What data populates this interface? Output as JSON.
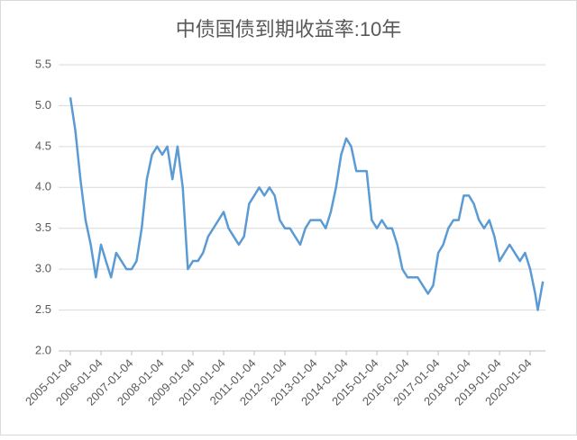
{
  "chart_data": {
    "type": "line",
    "title": "中债国债到期收益率:10年",
    "x": [
      "2005-01-04",
      "2005-03-04",
      "2005-05-04",
      "2005-07-04",
      "2005-09-04",
      "2005-11-04",
      "2006-01-04",
      "2006-03-04",
      "2006-05-04",
      "2006-07-04",
      "2006-09-04",
      "2006-11-04",
      "2007-01-04",
      "2007-03-04",
      "2007-05-04",
      "2007-07-04",
      "2007-09-04",
      "2007-11-04",
      "2008-01-04",
      "2008-03-04",
      "2008-05-04",
      "2008-07-04",
      "2008-09-04",
      "2008-11-04",
      "2009-01-04",
      "2009-03-04",
      "2009-05-04",
      "2009-07-04",
      "2009-09-04",
      "2009-11-04",
      "2010-01-04",
      "2010-03-04",
      "2010-05-04",
      "2010-07-04",
      "2010-09-04",
      "2010-11-04",
      "2011-01-04",
      "2011-03-04",
      "2011-05-04",
      "2011-07-04",
      "2011-09-04",
      "2011-11-04",
      "2012-01-04",
      "2012-03-04",
      "2012-05-04",
      "2012-07-04",
      "2012-09-04",
      "2012-11-04",
      "2013-01-04",
      "2013-03-04",
      "2013-05-04",
      "2013-07-04",
      "2013-09-04",
      "2013-11-04",
      "2014-01-04",
      "2014-03-04",
      "2014-05-04",
      "2014-07-04",
      "2014-09-04",
      "2014-11-04",
      "2015-01-04",
      "2015-03-04",
      "2015-05-04",
      "2015-07-04",
      "2015-09-04",
      "2015-11-04",
      "2016-01-04",
      "2016-03-04",
      "2016-05-04",
      "2016-07-04",
      "2016-09-04",
      "2016-11-04",
      "2017-01-04",
      "2017-03-04",
      "2017-05-04",
      "2017-07-04",
      "2017-09-04",
      "2017-11-04",
      "2018-01-04",
      "2018-03-04",
      "2018-05-04",
      "2018-07-04",
      "2018-09-04",
      "2018-11-04",
      "2019-01-04",
      "2019-03-04",
      "2019-05-04",
      "2019-07-04",
      "2019-09-04",
      "2019-11-04",
      "2020-01-04",
      "2020-03-04",
      "2020-04-04",
      "2020-06-04"
    ],
    "series": [
      {
        "color": "#5b9bd5",
        "values": [
          5.1,
          4.7,
          4.1,
          3.6,
          3.3,
          2.9,
          3.3,
          3.1,
          2.9,
          3.2,
          3.1,
          3.0,
          3.0,
          3.1,
          3.5,
          4.1,
          4.4,
          4.5,
          4.4,
          4.5,
          4.1,
          4.5,
          4.0,
          3.0,
          3.1,
          3.1,
          3.2,
          3.4,
          3.5,
          3.6,
          3.7,
          3.5,
          3.4,
          3.3,
          3.4,
          3.8,
          3.9,
          4.0,
          3.9,
          4.0,
          3.9,
          3.6,
          3.5,
          3.5,
          3.4,
          3.3,
          3.5,
          3.6,
          3.6,
          3.6,
          3.5,
          3.7,
          4.0,
          4.4,
          4.6,
          4.5,
          4.2,
          4.2,
          4.2,
          3.6,
          3.5,
          3.6,
          3.5,
          3.5,
          3.3,
          3.0,
          2.9,
          2.9,
          2.9,
          2.8,
          2.7,
          2.8,
          3.2,
          3.3,
          3.5,
          3.6,
          3.6,
          3.9,
          3.9,
          3.8,
          3.6,
          3.5,
          3.6,
          3.4,
          3.1,
          3.2,
          3.3,
          3.2,
          3.1,
          3.2,
          3.0,
          2.7,
          2.5,
          2.85
        ]
      }
    ],
    "xlim": [
      "2004-08-17",
      "2020-07-04"
    ],
    "xticks": [
      "2005-01-04",
      "2006-01-04",
      "2007-01-04",
      "2008-01-04",
      "2009-01-04",
      "2010-01-04",
      "2011-01-04",
      "2012-01-04",
      "2013-01-04",
      "2014-01-04",
      "2015-01-04",
      "2016-01-04",
      "2017-01-04",
      "2018-01-04",
      "2019-01-04",
      "2020-01-04"
    ],
    "ylim": [
      2.0,
      5.5
    ],
    "yticks": [
      {
        "value": 2,
        "label": "2.0"
      },
      {
        "value": 2.5,
        "label": "2.5"
      },
      {
        "value": 3,
        "label": "3.0"
      },
      {
        "value": 3.5,
        "label": "3.5"
      },
      {
        "value": 4,
        "label": "4.0"
      },
      {
        "value": 4.5,
        "label": "4.5"
      },
      {
        "value": 5,
        "label": "5.0"
      },
      {
        "value": 5.5,
        "label": "5.5"
      }
    ],
    "grid": true
  }
}
